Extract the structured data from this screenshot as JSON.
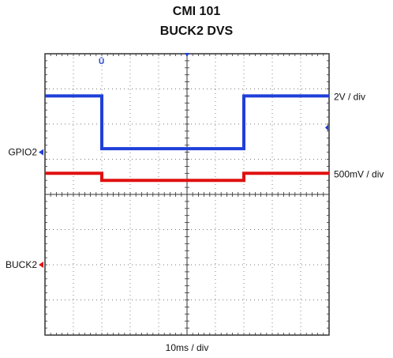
{
  "title_line1": "CMI 101",
  "title_line2": "BUCK2 DVS",
  "x_scale_label": "10ms / div",
  "colors": {
    "gpio2": "#1f3fd9",
    "buck2": "#e01010",
    "grid": "#222222"
  },
  "chart_data": {
    "type": "line",
    "title": "CMI 101 BUCK2 DVS",
    "xlabel": "10ms / div",
    "grid": true,
    "divisions": {
      "x": 10,
      "y": 8
    },
    "x_unit": "div",
    "y_unit": "div",
    "xlim": [
      0,
      10
    ],
    "ylim": [
      0,
      8
    ],
    "series": [
      {
        "name": "GPIO2",
        "scale_label": "2V / div",
        "color": "#1f3fd9",
        "ground_marker_level": 5.2,
        "x": [
          0,
          2.0,
          2.0,
          7.0,
          7.0,
          10
        ],
        "y": [
          6.8,
          6.8,
          5.3,
          5.3,
          6.8,
          6.8
        ]
      },
      {
        "name": "BUCK2",
        "scale_label": "500mV / div",
        "color": "#e01010",
        "ground_marker_level": 2.0,
        "x": [
          0,
          2.0,
          2.0,
          7.0,
          7.0,
          10
        ],
        "y": [
          4.6,
          4.6,
          4.4,
          4.4,
          4.6,
          4.6
        ]
      }
    ]
  }
}
